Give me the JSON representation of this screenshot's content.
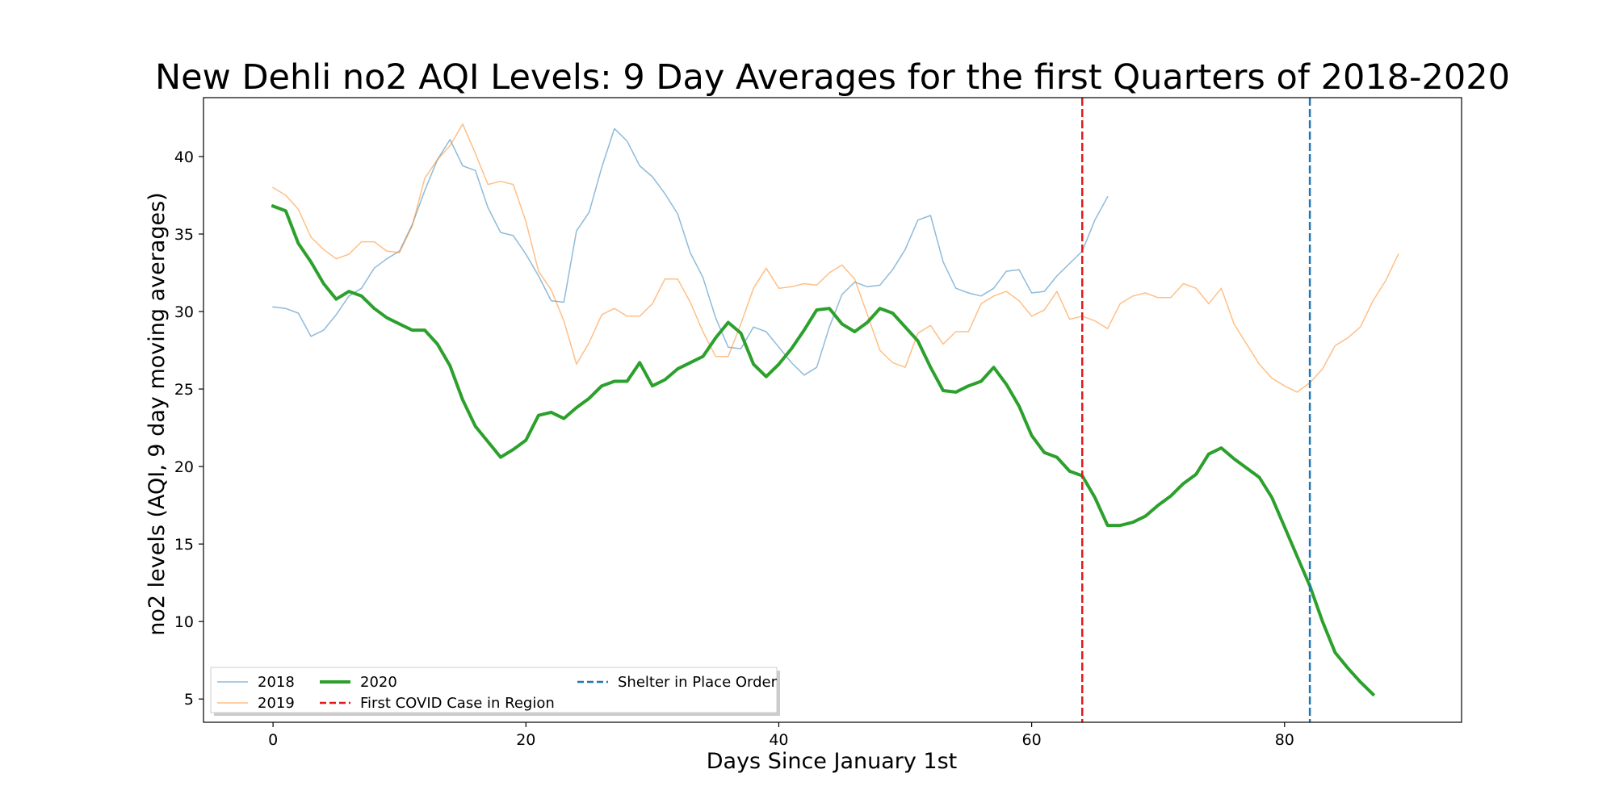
{
  "chart_data": {
    "type": "line",
    "title": "New Dehli no2 AQI Levels: 9 Day Averages for the first Quarters of 2018-2020",
    "xlabel": "Days Since January 1st",
    "ylabel": "no2 levels (AQI, 9 day moving averages)",
    "xlim": [
      -5.5,
      94
    ],
    "ylim": [
      3.5,
      43.8
    ],
    "xticks": [
      0,
      20,
      40,
      60,
      80
    ],
    "yticks": [
      5,
      10,
      15,
      20,
      25,
      30,
      35,
      40
    ],
    "grid": false,
    "legend_placement": "lower-left",
    "legend_columns": 3,
    "series": [
      {
        "name": "2018",
        "color": "#1f77b4",
        "alpha": 0.5,
        "line_width": 1.5,
        "x_start": 0,
        "values": [
          30.3,
          30.2,
          29.9,
          28.4,
          28.8,
          29.8,
          31.0,
          31.5,
          32.8,
          33.4,
          33.9,
          35.6,
          37.8,
          39.8,
          41.1,
          39.4,
          39.1,
          36.7,
          35.1,
          34.9,
          33.7,
          32.3,
          30.7,
          30.6,
          35.2,
          36.4,
          39.3,
          41.8,
          41.0,
          39.4,
          38.7,
          37.6,
          36.3,
          33.8,
          32.2,
          29.6,
          27.7,
          27.6,
          29.0,
          28.7,
          27.7,
          26.7,
          25.9,
          26.4,
          29.0,
          31.1,
          31.9,
          31.6,
          31.7,
          32.7,
          34.0,
          35.9,
          36.2,
          33.2,
          31.5,
          31.2,
          31.0,
          31.5,
          32.6,
          32.7,
          31.2,
          31.3,
          32.3,
          33.1,
          33.9,
          35.9,
          37.4
        ]
      },
      {
        "name": "2019",
        "color": "#ff7f0e",
        "alpha": 0.5,
        "line_width": 1.5,
        "x_start": 0,
        "values": [
          38.0,
          37.5,
          36.6,
          34.8,
          34.0,
          33.4,
          33.7,
          34.5,
          34.5,
          33.9,
          33.8,
          35.5,
          38.6,
          39.8,
          40.7,
          42.1,
          40.2,
          38.2,
          38.4,
          38.2,
          35.8,
          32.6,
          31.4,
          29.4,
          26.6,
          28.0,
          29.8,
          30.2,
          29.7,
          29.7,
          30.5,
          32.1,
          32.1,
          30.6,
          28.7,
          27.1,
          27.1,
          29.2,
          31.5,
          32.8,
          31.5,
          31.6,
          31.8,
          31.7,
          32.5,
          33.0,
          32.1,
          29.8,
          27.5,
          26.7,
          26.4,
          28.6,
          29.1,
          27.9,
          28.7,
          28.7,
          30.5,
          31.0,
          31.3,
          30.7,
          29.7,
          30.1,
          31.3,
          29.5,
          29.7,
          29.4,
          28.9,
          30.5,
          31.0,
          31.2,
          30.9,
          30.9,
          31.8,
          31.5,
          30.5,
          31.5,
          29.2,
          27.9,
          26.6,
          25.7,
          25.2,
          24.8,
          25.4,
          26.3,
          27.8,
          28.3,
          29.0,
          30.7,
          32.0,
          33.7
        ]
      },
      {
        "name": "2020",
        "color": "#2ca02c",
        "alpha": 1.0,
        "line_width": 4,
        "x_start": 0,
        "values": [
          36.8,
          36.5,
          34.4,
          33.2,
          31.8,
          30.8,
          31.3,
          31.0,
          30.2,
          29.6,
          29.2,
          28.8,
          28.8,
          27.9,
          26.5,
          24.3,
          22.6,
          21.6,
          20.6,
          21.1,
          21.7,
          23.3,
          23.5,
          23.1,
          23.8,
          24.4,
          25.2,
          25.5,
          25.5,
          26.7,
          25.2,
          25.6,
          26.3,
          26.7,
          27.1,
          28.3,
          29.3,
          28.6,
          26.6,
          25.8,
          26.6,
          27.6,
          28.8,
          30.1,
          30.2,
          29.2,
          28.7,
          29.3,
          30.2,
          29.9,
          29.0,
          28.1,
          26.4,
          24.9,
          24.8,
          25.2,
          25.5,
          26.4,
          25.3,
          23.9,
          22.0,
          20.9,
          20.6,
          19.7,
          19.4,
          18.0,
          16.2,
          16.2,
          16.4,
          16.8,
          17.5,
          18.1,
          18.9,
          19.5,
          20.8,
          21.2,
          20.5,
          19.9,
          19.3,
          18.0,
          16.1,
          14.2,
          12.3,
          10.0,
          8.0,
          7.0,
          6.1,
          5.3
        ]
      }
    ],
    "vlines": [
      {
        "name": "First COVID Case in Region",
        "x": 64,
        "color": "#e31a1c",
        "style": "dashed"
      },
      {
        "name": "Shelter in Place Order",
        "x": 82,
        "color": "#1f77b4",
        "style": "dashed"
      }
    ]
  }
}
